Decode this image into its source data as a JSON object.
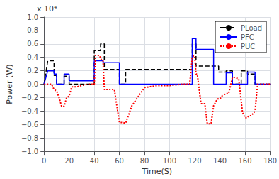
{
  "chart_data": {
    "type": "line",
    "xlabel": "Time(S)",
    "ylabel": "Power (W)",
    "annotation": "x 10⁴",
    "xlim": [
      0,
      180
    ],
    "ylim": [
      -1.0,
      1.0
    ],
    "xticks": [
      0,
      20,
      40,
      60,
      80,
      100,
      120,
      140,
      160,
      180
    ],
    "yticks": [
      {
        "value": -1.0,
        "label": "−1.0"
      },
      {
        "value": -0.8,
        "label": "−0.8"
      },
      {
        "value": -0.6,
        "label": "−0.6"
      },
      {
        "value": -0.4,
        "label": "−0.4"
      },
      {
        "value": -0.2,
        "label": "−0.2"
      },
      {
        "value": 0.0,
        "label": "0.0"
      },
      0.2,
      0.4,
      0.6,
      0.8,
      {
        "value": 1.0,
        "label": "1.0"
      }
    ],
    "series": [
      {
        "name": "PLoad",
        "color": "#000000",
        "line_style": "dashed",
        "x": [
          0,
          3,
          8,
          8,
          10,
          10,
          16,
          16,
          20,
          20,
          40,
          40,
          45,
          45,
          48,
          48,
          60,
          60,
          65,
          65,
          118,
          118,
          121,
          121,
          139,
          139,
          145,
          145,
          150,
          150,
          157,
          157,
          162,
          162,
          168,
          168,
          180
        ],
        "values": [
          0,
          0.35,
          0.35,
          0.13,
          0.13,
          0.0,
          0.0,
          0.12,
          0.12,
          0.0,
          0.0,
          0.5,
          0.5,
          0.6,
          0.6,
          0.22,
          0.22,
          0.0,
          0.0,
          0.22,
          0.22,
          0.6,
          0.6,
          0.27,
          0.27,
          0.18,
          0.18,
          0.2,
          0.2,
          0.0,
          0.0,
          0.2,
          0.2,
          0.15,
          0.15,
          0.0,
          0.0
        ]
      },
      {
        "name": "PFC",
        "color": "#0000FF",
        "line_style": "solid",
        "x": [
          0,
          3,
          8,
          8,
          10,
          10,
          16,
          16,
          20,
          20,
          40,
          40,
          47,
          47,
          60,
          60,
          65,
          65,
          118,
          118,
          121,
          121,
          135,
          135,
          145,
          145,
          150,
          150,
          162,
          162,
          168,
          168,
          180
        ],
        "values": [
          0,
          0.2,
          0.2,
          0.15,
          0.15,
          0.0,
          0.0,
          0.15,
          0.15,
          0.05,
          0.05,
          0.35,
          0.35,
          0.32,
          0.32,
          0.0,
          0.0,
          0.0,
          0.0,
          0.68,
          0.68,
          0.52,
          0.52,
          0.0,
          0.0,
          0.17,
          0.17,
          0.0,
          0.0,
          0.18,
          0.18,
          0.0,
          0.0
        ]
      },
      {
        "name": "PUC",
        "color": "#FF0000",
        "line_style": "dotted",
        "x": [
          0,
          2,
          4,
          6,
          8,
          10,
          12,
          14,
          16,
          18,
          20,
          22,
          26,
          30,
          35,
          40,
          41,
          44,
          46,
          47,
          48,
          52,
          56,
          60,
          62,
          65,
          70,
          80,
          90,
          100,
          110,
          116,
          118,
          119,
          120,
          121,
          122,
          125,
          128,
          130,
          133,
          135,
          138,
          140,
          142,
          145,
          147,
          150,
          152,
          155,
          158,
          160,
          162,
          163,
          165,
          168,
          170,
          175,
          180
        ],
        "values": [
          0,
          0,
          0,
          0,
          -0.08,
          -0.1,
          -0.2,
          -0.33,
          -0.33,
          -0.2,
          -0.18,
          -0.04,
          -0.04,
          -0.02,
          0,
          0,
          0.43,
          0.43,
          0.35,
          0.35,
          -0.08,
          -0.08,
          -0.08,
          -0.57,
          -0.57,
          -0.58,
          -0.32,
          -0.05,
          -0.02,
          -0.02,
          0.0,
          0.0,
          0.4,
          0.42,
          0.42,
          0.15,
          0.15,
          -0.29,
          -0.29,
          -0.59,
          -0.59,
          -0.32,
          -0.22,
          -0.22,
          -0.17,
          -0.14,
          -0.14,
          0.1,
          0.1,
          0.08,
          -0.42,
          -0.5,
          -0.5,
          -0.47,
          -0.47,
          -0.4,
          0,
          0,
          0
        ]
      }
    ],
    "grid": true,
    "legend": "upper right"
  }
}
